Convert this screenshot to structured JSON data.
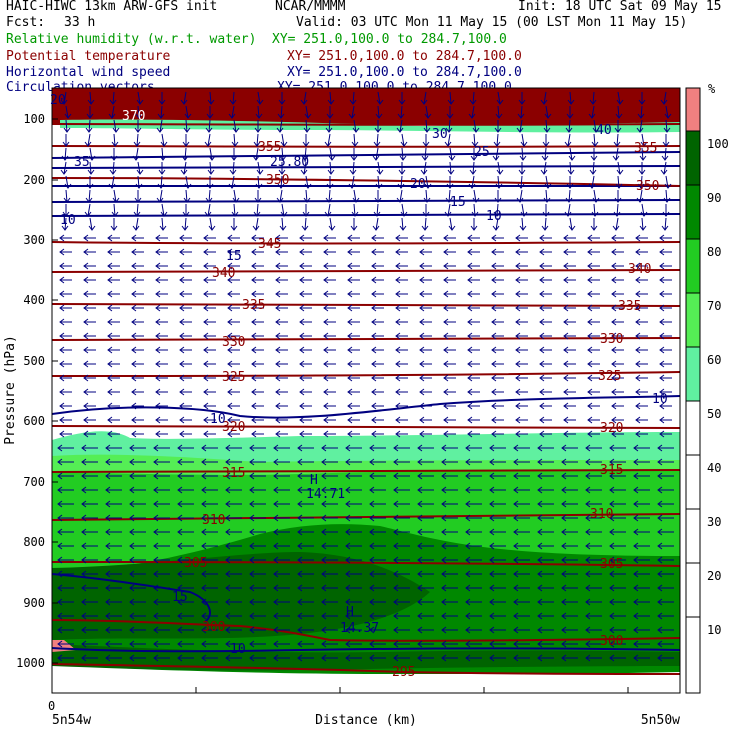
{
  "header": {
    "title_left": "HAIC-HIWC 13km ARW-GFS init",
    "agency": "NCAR/MMMM",
    "init": "Init: 18 UTC Sat 09 May 15",
    "fcst_label": "Fcst:",
    "fcst_value": "33 h",
    "valid": "Valid: 03 UTC Mon 11 May 15 (00 LST Mon 11 May 15)"
  },
  "legend": [
    {
      "label": "Relative humidity (w.r.t. water)",
      "xy": "XY= 251.0,100.0 to 284.7,100.0",
      "color": "#009900"
    },
    {
      "label": "Potential temperature",
      "xy": "XY= 251.0,100.0 to 284.7,100.0",
      "color": "#8b0000"
    },
    {
      "label": "Horizontal wind speed",
      "xy": "XY= 251.0,100.0 to 284.7,100.0",
      "color": "#000080"
    },
    {
      "label": "Circulation vectors",
      "xy": "XY= 251.0,100.0 to 284.7,100.0",
      "color": "#000080"
    }
  ],
  "chart_data": {
    "type": "heatmap",
    "ylabel": "Pressure (hPa)",
    "xlabel": "Distance (km)",
    "x_start_label": "0",
    "x_left_label": "5n54w",
    "x_right_label": "5n50w",
    "y_axis_log": true,
    "ylim": [
      1050,
      90
    ],
    "yticks": [
      "100",
      "200",
      "300",
      "400",
      "500",
      "600",
      "700",
      "800",
      "900",
      "1000"
    ],
    "colorbar_unit": "%",
    "colorbar_ticks": [
      "100",
      "90",
      "80",
      "70",
      "60",
      "50",
      "40",
      "30",
      "20",
      "10"
    ],
    "colorbar_levels": [
      {
        "range": "100+",
        "color": "#f08080"
      },
      {
        "range": "90-100",
        "color": "#006400"
      },
      {
        "range": "80-90",
        "color": "#008800"
      },
      {
        "range": "70-80",
        "color": "#22cc22"
      },
      {
        "range": "60-70",
        "color": "#55ee55"
      },
      {
        "range": "50-60",
        "color": "#60f0a0"
      },
      {
        "range": "0-50",
        "color": "#ffffff"
      }
    ],
    "theta_labels_left": [
      "370",
      "355",
      "350",
      "345",
      "340",
      "335",
      "330",
      "325",
      "320",
      "315",
      "310",
      "305",
      "300",
      "295"
    ],
    "theta_labels_right": [
      "350",
      "340",
      "335",
      "330",
      "325",
      "320",
      "315",
      "310",
      "305",
      "300",
      "355"
    ],
    "wind_labels": [
      "10",
      "15",
      "20",
      "25",
      "30",
      "35",
      "40",
      "25.80",
      "15",
      "10",
      "10",
      "10",
      "15",
      "20",
      "10"
    ],
    "annotations": [
      {
        "text": "H",
        "value": "14.71"
      },
      {
        "text": "H",
        "value": "14.37"
      }
    ]
  }
}
